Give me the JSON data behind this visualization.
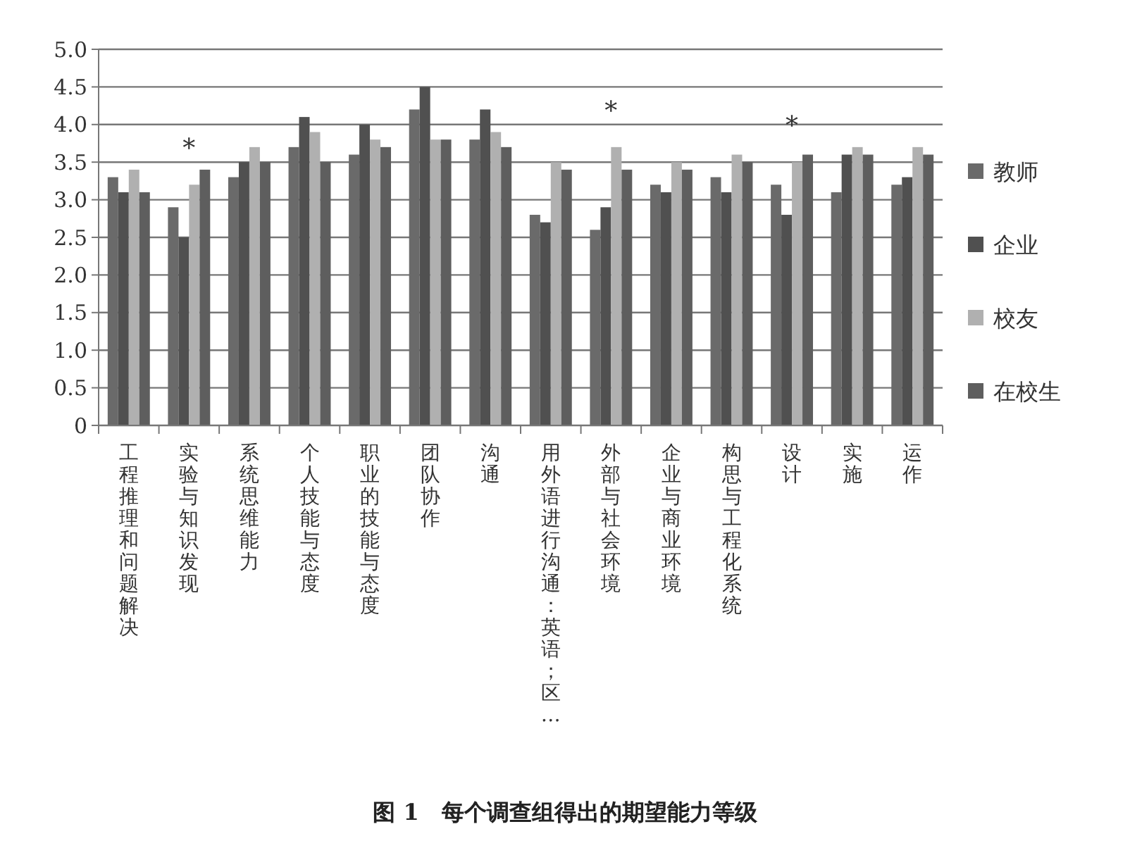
{
  "chart_data": {
    "type": "bar",
    "title": "图 1　每个调查组得出的期望能力等级",
    "categories": [
      "工程推理和问题解决",
      "实验与知识发现",
      "系统思维能力",
      "个人技能与态度",
      "职业的技能与态度",
      "团队协作",
      "沟通",
      "用外语进行沟通：英语；区…",
      "外部与社会环境",
      "企业与商业环境",
      "构思与工程化系统",
      "设计",
      "实施",
      "运作"
    ],
    "series": [
      {
        "name": "教师",
        "color": "#6a6a6a",
        "values": [
          3.3,
          2.9,
          3.3,
          3.7,
          3.6,
          4.2,
          3.8,
          2.8,
          2.6,
          3.2,
          3.3,
          3.2,
          3.1,
          3.2
        ]
      },
      {
        "name": "企业",
        "color": "#505050",
        "values": [
          3.1,
          2.5,
          3.5,
          4.1,
          4.0,
          4.5,
          4.2,
          2.7,
          2.9,
          3.1,
          3.1,
          2.8,
          3.6,
          3.3
        ]
      },
      {
        "name": "校友",
        "color": "#b0b0b0",
        "values": [
          3.4,
          3.2,
          3.7,
          3.9,
          3.8,
          3.8,
          3.9,
          3.5,
          3.7,
          3.5,
          3.6,
          3.5,
          3.7,
          3.7
        ]
      },
      {
        "name": "在校生",
        "color": "#5e5e5e",
        "values": [
          3.1,
          3.4,
          3.5,
          3.5,
          3.7,
          3.8,
          3.7,
          3.4,
          3.4,
          3.4,
          3.5,
          3.6,
          3.6,
          3.6
        ]
      }
    ],
    "ylim": [
      0,
      5
    ],
    "yticks": [
      0,
      {
        "value": 0.5,
        "label": "0.5"
      },
      {
        "value": 1,
        "label": "1.0"
      },
      {
        "value": 1.5,
        "label": "1.5"
      },
      {
        "value": 2,
        "label": "2.0"
      },
      {
        "value": 2.5,
        "label": "2.5"
      },
      {
        "value": 3,
        "label": "3.0"
      },
      {
        "value": 3.5,
        "label": "3.5"
      },
      {
        "value": 4,
        "label": "4.0"
      },
      {
        "value": 4.5,
        "label": "4.5"
      },
      {
        "value": 5,
        "label": "5.0"
      }
    ],
    "grid": "y",
    "legend": "right",
    "annotations": [
      {
        "text": "*",
        "x": "实验与知识发现",
        "y": 3.2
      },
      {
        "text": "*",
        "x": "外部与社会环境",
        "y": 3.7
      },
      {
        "text": "*",
        "x": "设计",
        "y": 3.5
      }
    ]
  }
}
